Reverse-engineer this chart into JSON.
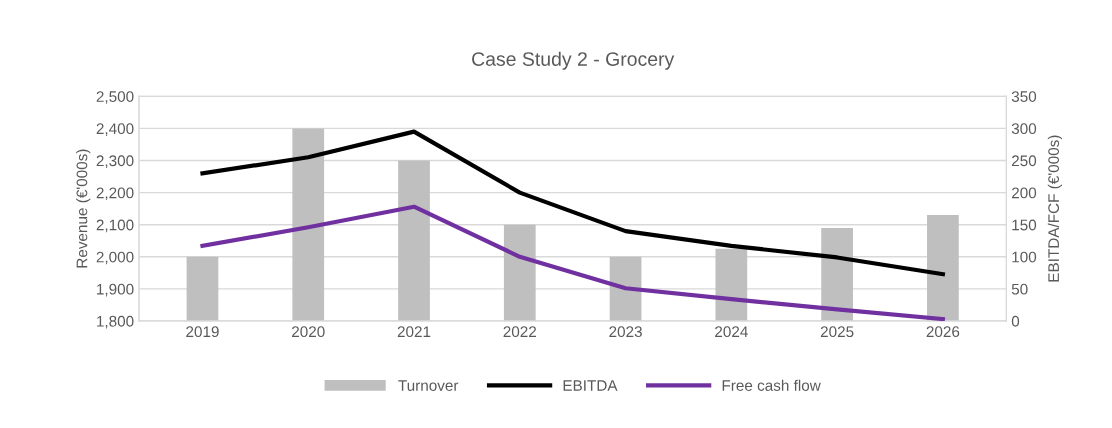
{
  "chart_data": {
    "type": "bar",
    "title": "Case Study 2 - Grocery",
    "ylabel": "Revenue (€'000s)",
    "y2label": "EBITDA/FCF (€'000s)",
    "categories": [
      "2019",
      "2020",
      "2021",
      "2022",
      "2023",
      "2024",
      "2025",
      "2026"
    ],
    "series": [
      {
        "name": "Turnover",
        "color": "#bfbfbf",
        "values": [
          2000,
          2400,
          2300,
          2100,
          2000,
          2025,
          2090,
          2130
        ]
      },
      {
        "name": "EBITDA",
        "type": "line",
        "axis": "y2",
        "color": "#000000",
        "values": [
          230,
          255,
          295,
          200,
          140,
          117,
          99,
          73
        ]
      },
      {
        "name": "Free cash flow",
        "type": "line",
        "axis": "y2",
        "color": "#7030a0",
        "values": [
          117,
          146,
          178,
          100,
          51,
          34,
          18,
          3
        ]
      }
    ],
    "ylim": [
      1800,
      2500
    ],
    "yticks": [
      {
        "value": 1800,
        "label": "1,800"
      },
      {
        "value": 1900,
        "label": "1,900"
      },
      {
        "value": 2000,
        "label": "2,000"
      },
      {
        "value": 2100,
        "label": "2,100"
      },
      {
        "value": 2200,
        "label": "2,200"
      },
      {
        "value": 2300,
        "label": "2,300"
      },
      {
        "value": 2400,
        "label": "2,400"
      },
      {
        "value": 2500,
        "label": "2,500"
      }
    ],
    "y2lim": [
      0,
      350
    ],
    "y2ticks": [
      0,
      50,
      100,
      150,
      200,
      250,
      300,
      350
    ],
    "grid": "y",
    "legend": "bottom"
  }
}
